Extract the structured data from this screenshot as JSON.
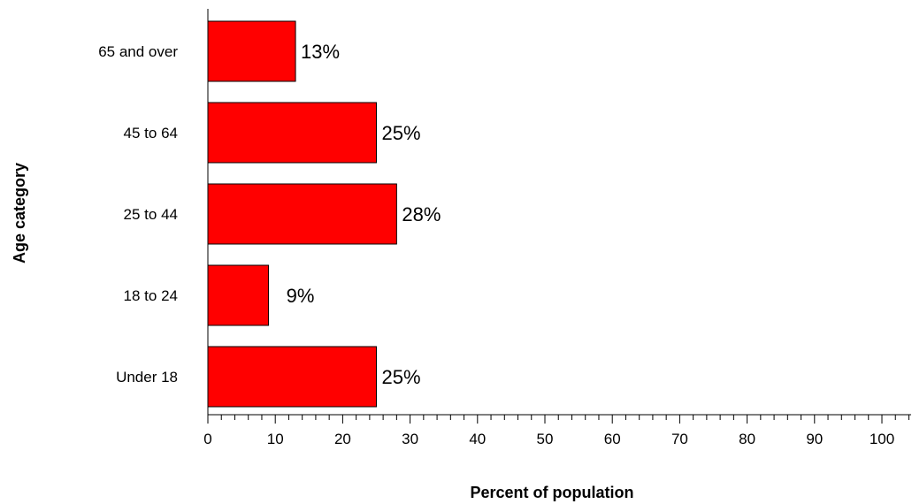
{
  "chart_data": {
    "type": "bar",
    "orientation": "horizontal",
    "categories": [
      "65 and over",
      "45 to 64",
      "25 to 44",
      "18 to 24",
      "Under 18"
    ],
    "values": [
      13,
      25,
      28,
      9,
      25
    ],
    "data_labels": [
      "13%",
      "25%",
      "28%",
      "9%",
      "25%"
    ],
    "xlabel": "Percent of population",
    "ylabel": "Age category",
    "xlim": [
      0,
      100
    ],
    "x_ticks": [
      0,
      10,
      20,
      30,
      40,
      50,
      60,
      70,
      80,
      90,
      100
    ],
    "grid": false,
    "legend": "none",
    "bar_color": "#ff0000",
    "bar_edge_color": "#000000"
  }
}
